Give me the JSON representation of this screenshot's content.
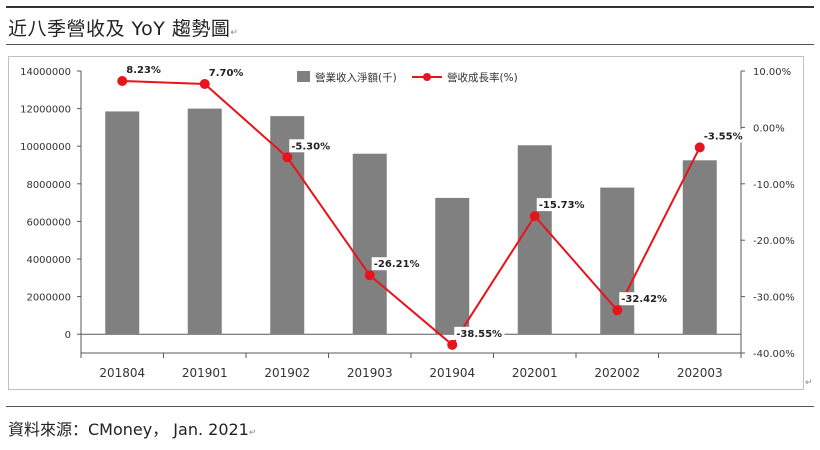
{
  "page": {
    "title": "近八季營收及 YoY 趨勢圖",
    "source": "資料來源：CMoney， Jan. 2021",
    "return_mark": "↵"
  },
  "colors": {
    "bar": "#808080",
    "line": "#e8141b",
    "axis": "#595959",
    "grid": "#d9d9d9"
  },
  "chart_data": {
    "type": "bar",
    "categories": [
      "201804",
      "201901",
      "201902",
      "201903",
      "201904",
      "202001",
      "202002",
      "202003"
    ],
    "series": [
      {
        "name": "營業收入淨額(千)",
        "type": "bar",
        "axis": "left",
        "values": [
          11850000,
          12000000,
          11600000,
          9600000,
          7250000,
          10050000,
          7800000,
          9250000
        ]
      },
      {
        "name": "營收成長率(%)",
        "type": "line",
        "axis": "right",
        "values": [
          8.23,
          7.7,
          -5.3,
          -26.21,
          -38.55,
          -15.73,
          -32.42,
          -3.55
        ],
        "labels": [
          "8.23%",
          "7.70%",
          "-5.30%",
          "-26.21%",
          "-38.55%",
          "-15.73%",
          "-32.42%",
          "-3.55%"
        ]
      }
    ],
    "left_axis": {
      "range": [
        -1000000,
        14000000
      ],
      "ticks": [
        0,
        2000000,
        4000000,
        6000000,
        8000000,
        10000000,
        12000000,
        14000000
      ],
      "tick_labels": [
        "0",
        "2000000",
        "4000000",
        "6000000",
        "8000000",
        "10000000",
        "12000000",
        "14000000"
      ]
    },
    "right_axis": {
      "range": [
        -40,
        10
      ],
      "ticks": [
        10,
        0,
        -10,
        -20,
        -30,
        -40
      ],
      "tick_labels": [
        "10.00%",
        "0.00%",
        "-10.00%",
        "-20.00%",
        "-30.00%",
        "-40.00%"
      ]
    },
    "legend_position": "top-center",
    "grid": false
  }
}
